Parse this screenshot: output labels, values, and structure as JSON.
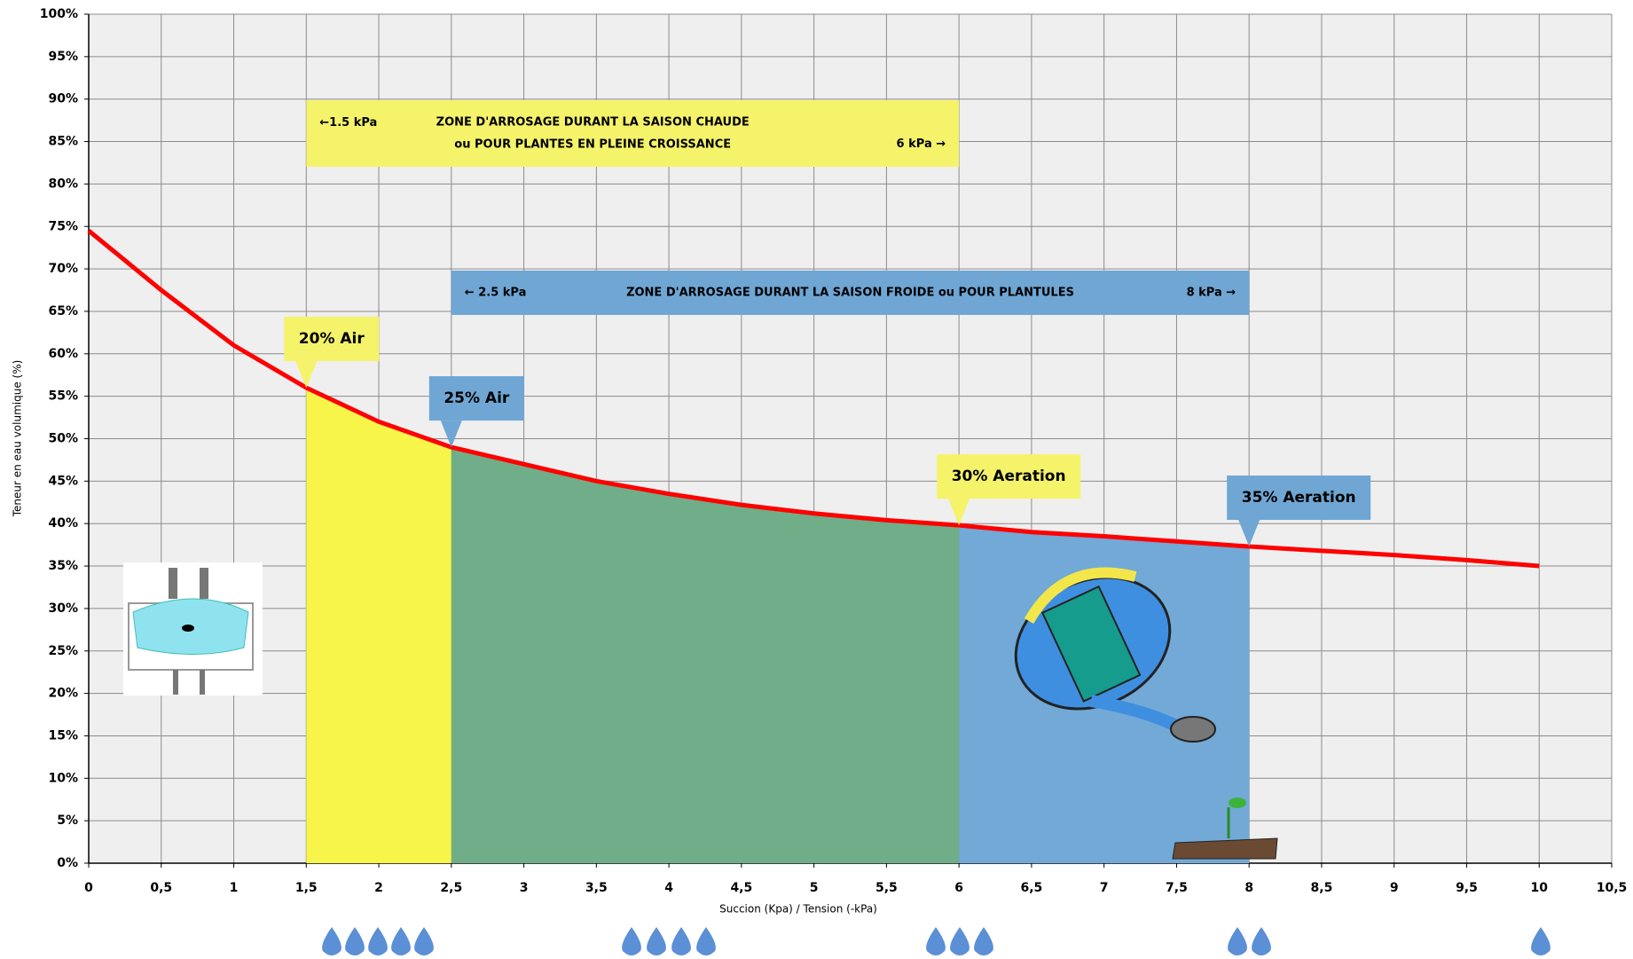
{
  "chart_data": {
    "type": "line",
    "x_label": "Succion (Kpa) / Tension (-kPa)",
    "y_label": "Teneur en eau volumique (%)",
    "xlim": [
      0,
      10.5
    ],
    "ylim": [
      0,
      100
    ],
    "grid": true,
    "xticks": [
      0,
      {
        "value": 0.5,
        "label": "0,5"
      },
      1,
      {
        "value": 1.5,
        "label": "1,5"
      },
      2,
      {
        "value": 2.5,
        "label": "2,5"
      },
      3,
      {
        "value": 3.5,
        "label": "3,5"
      },
      4,
      {
        "value": 4.5,
        "label": "4,5"
      },
      5,
      {
        "value": 5.5,
        "label": "5,5"
      },
      6,
      {
        "value": 6.5,
        "label": "6,5"
      },
      7,
      {
        "value": 7.5,
        "label": "7,5"
      },
      8,
      {
        "value": 8.5,
        "label": "8,5"
      },
      9,
      {
        "value": 9.5,
        "label": "9,5"
      },
      10,
      {
        "value": 10.5,
        "label": "10,5"
      }
    ],
    "yticks": [
      {
        "value": 0,
        "label": "0%"
      },
      {
        "value": 5,
        "label": "5%"
      },
      {
        "value": 10,
        "label": "10%"
      },
      {
        "value": 15,
        "label": "15%"
      },
      {
        "value": 20,
        "label": "20%"
      },
      {
        "value": 25,
        "label": "25%"
      },
      {
        "value": 30,
        "label": "30%"
      },
      {
        "value": 35,
        "label": "35%"
      },
      {
        "value": 40,
        "label": "40%"
      },
      {
        "value": 45,
        "label": "45%"
      },
      {
        "value": 50,
        "label": "50%"
      },
      {
        "value": 55,
        "label": "55%"
      },
      {
        "value": 60,
        "label": "60%"
      },
      {
        "value": 65,
        "label": "65%"
      },
      {
        "value": 70,
        "label": "70%"
      },
      {
        "value": 75,
        "label": "75%"
      },
      {
        "value": 80,
        "label": "80%"
      },
      {
        "value": 85,
        "label": "85%"
      },
      {
        "value": 90,
        "label": "90%"
      },
      {
        "value": 95,
        "label": "95%"
      },
      {
        "value": 100,
        "label": "100%"
      }
    ],
    "x": [
      0,
      0.5,
      1,
      1.5,
      2,
      2.5,
      3,
      3.5,
      4,
      4.5,
      5,
      5.5,
      6,
      6.5,
      7,
      7.5,
      8,
      8.5,
      9,
      9.5,
      10
    ],
    "series": [
      {
        "color": "#ff0000",
        "values": [
          74.5,
          67.5,
          61,
          56,
          52,
          49,
          47,
          45,
          43.5,
          42.2,
          41.2,
          40.4,
          39.8,
          39,
          38.5,
          37.9,
          37.3,
          36.8,
          36.3,
          35.7,
          35
        ]
      }
    ],
    "zones": [
      {
        "from": 1.5,
        "to": 2.5,
        "color": "#f7f54a"
      },
      {
        "from": 2.5,
        "to": 6,
        "color": "#6fae88"
      },
      {
        "from": 6,
        "to": 8,
        "color": "#72a9d6"
      }
    ],
    "bands": [
      {
        "from": 1.5,
        "to": 6,
        "color": "#f5f36a",
        "left": "←1.5 kPa",
        "center": [
          "ZONE D'ARROSAGE DURANT LA SAISON CHAUDE",
          "ou  POUR PLANTES EN PLEINE CROISSANCE"
        ],
        "right": "6 kPa →"
      },
      {
        "from": 2.5,
        "to": 8,
        "color": "#6fa6d4",
        "left": "←  2.5 kPa",
        "center": [
          "ZONE D'ARROSAGE DURANT LA SAISON FROIDE ou POUR PLANTULES"
        ],
        "right": "8 kPa  →"
      }
    ],
    "callouts": [
      {
        "x": 1.5,
        "text": "20% Air",
        "color": "#f5f36a"
      },
      {
        "x": 2.5,
        "text": "25% Air",
        "color": "#6fa6d4"
      },
      {
        "x": 6,
        "text": "30% Aeration",
        "color": "#f5f36a"
      },
      {
        "x": 8,
        "text": "35% Aeration",
        "color": "#6fa6d4"
      }
    ]
  }
}
